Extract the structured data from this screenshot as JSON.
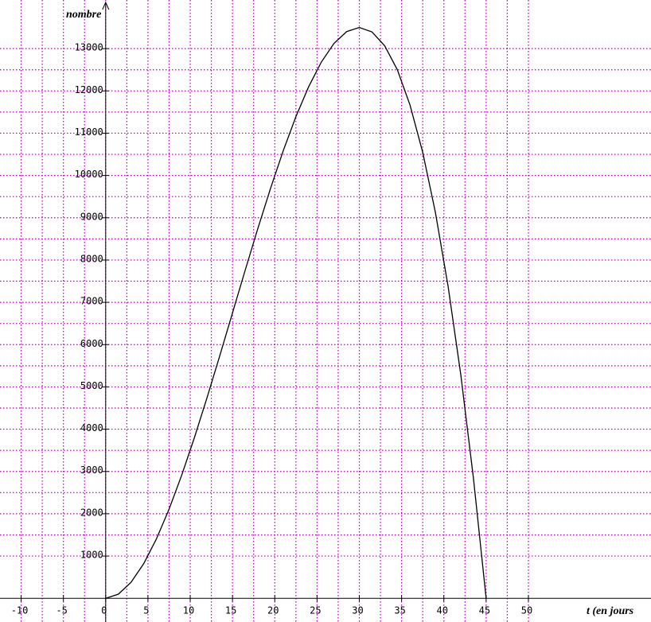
{
  "chart_data": {
    "type": "line",
    "xlabel": "t (en jours",
    "ylabel": "nombre",
    "x": [
      0,
      1.5,
      3,
      4.5,
      6,
      7.5,
      9,
      10.5,
      12,
      13.5,
      15,
      16.5,
      18,
      19.5,
      21,
      22.5,
      24,
      25.5,
      27,
      28.5,
      30,
      31.5,
      33,
      34.5,
      36,
      37.5,
      39,
      40.5,
      42,
      43.5,
      45
    ],
    "values": [
      0,
      98,
      378,
      820,
      1404,
      2109,
      2916,
      3804,
      4752,
      5741,
      6750,
      7759,
      8748,
      9696,
      10584,
      11391,
      12096,
      12680,
      13122,
      13402,
      13500,
      13395,
      13068,
      12498,
      11664,
      10547,
      9126,
      7381,
      5292,
      2838,
      0
    ],
    "color": "#000000",
    "xlim": [
      -12.5,
      64.5
    ],
    "ylim": [
      -560,
      14150
    ],
    "xticks": [
      -10,
      -5,
      0,
      5,
      10,
      15,
      20,
      25,
      30,
      35,
      40,
      45,
      50
    ],
    "yticks": [
      1000,
      2000,
      3000,
      4000,
      5000,
      6000,
      7000,
      8000,
      9000,
      10000,
      11000,
      12000,
      13000
    ],
    "grid": true
  }
}
